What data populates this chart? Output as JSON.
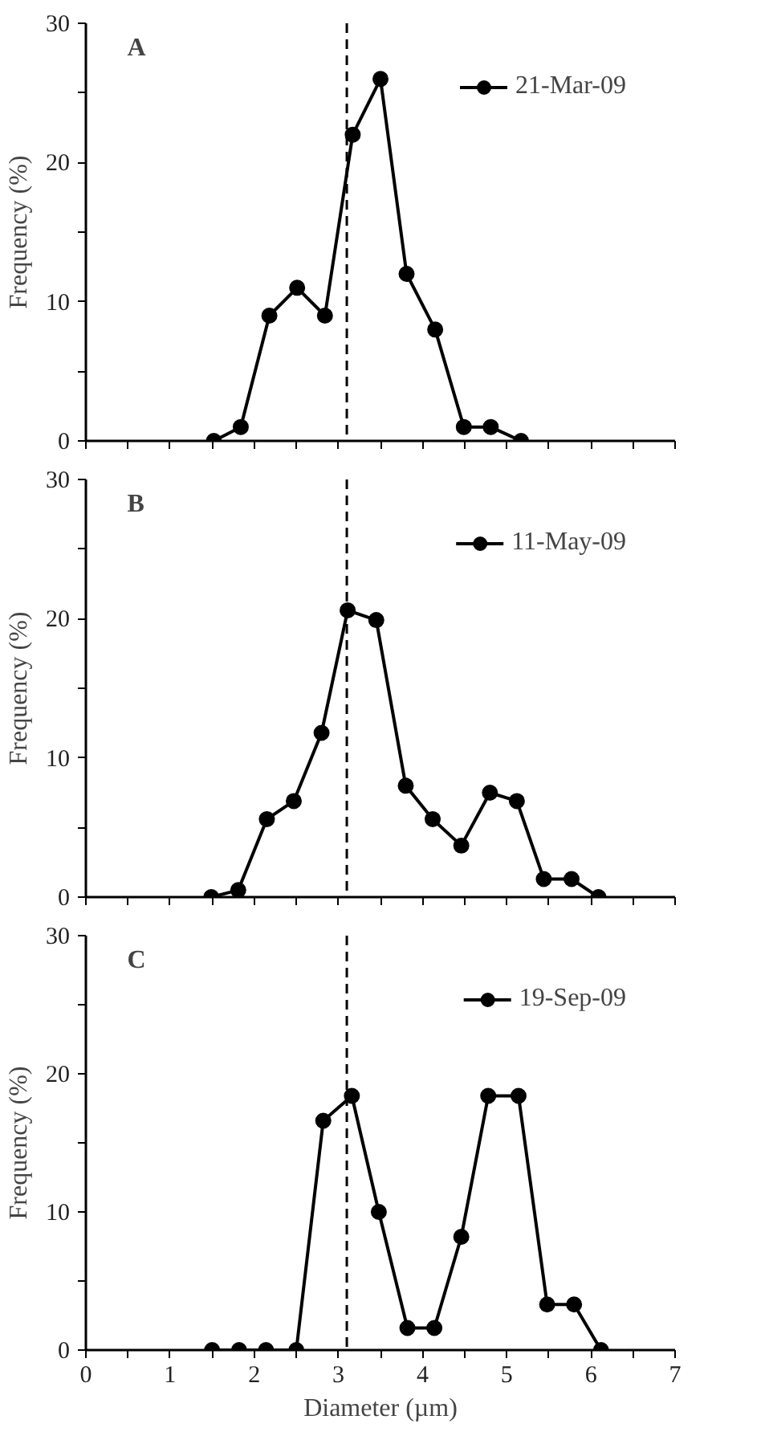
{
  "chart_data": [
    {
      "type": "line",
      "xlim": [
        0,
        7
      ],
      "ylim": [
        0,
        30
      ],
      "tick_labels": "y",
      "ylabel": "Frequency (%)",
      "marker": "circle",
      "line_style": "solid",
      "legend": "top right",
      "grid": false,
      "xticks": [
        0,
        {
          "value": 0.5,
          "label": null
        },
        1,
        {
          "value": 1.5,
          "label": null
        },
        2,
        {
          "value": 2.5,
          "label": null
        },
        3,
        {
          "value": 3.5,
          "label": null
        },
        4,
        {
          "value": 4.5,
          "label": null
        },
        5,
        {
          "value": 5.5,
          "label": null
        },
        6,
        {
          "value": 6.5,
          "label": null
        },
        7
      ],
      "yticks": [
        0,
        {
          "value": 5,
          "label": null
        },
        10,
        {
          "value": 15,
          "label": null
        },
        20,
        {
          "value": 25,
          "label": null
        },
        30
      ],
      "annotations": [
        {
          "text": "A"
        }
      ],
      "ref_lines": [
        {
          "axis": "x",
          "value": 3.1,
          "label": null,
          "color": "#000000",
          "line_style": "dashed"
        }
      ],
      "series": [
        {
          "name": "21-Mar-09",
          "color": "#000000",
          "x": [
            1.52,
            1.84,
            2.18,
            2.51,
            2.84,
            3.17,
            3.5,
            3.81,
            4.15,
            4.49,
            4.81,
            5.17
          ],
          "values": [
            0,
            1,
            9,
            11,
            9,
            22,
            26,
            12,
            8,
            1,
            1,
            0
          ]
        }
      ]
    },
    {
      "type": "line",
      "xlim": [
        0,
        7
      ],
      "ylim": [
        0,
        30
      ],
      "tick_labels": "y",
      "ylabel": "Frequency (%)",
      "marker": "circle",
      "line_style": "solid",
      "legend": "top right",
      "grid": false,
      "xticks": [
        0,
        {
          "value": 0.5,
          "label": null
        },
        1,
        {
          "value": 1.5,
          "label": null
        },
        2,
        {
          "value": 2.5,
          "label": null
        },
        3,
        {
          "value": 3.5,
          "label": null
        },
        4,
        {
          "value": 4.5,
          "label": null
        },
        5,
        {
          "value": 5.5,
          "label": null
        },
        6,
        {
          "value": 6.5,
          "label": null
        },
        7
      ],
      "yticks": [
        0,
        {
          "value": 5,
          "label": null
        },
        10,
        {
          "value": 15,
          "label": null
        },
        20,
        {
          "value": 25,
          "label": null
        },
        30
      ],
      "annotations": [
        {
          "text": "B"
        }
      ],
      "ref_lines": [
        {
          "axis": "x",
          "value": 3.1,
          "label": null,
          "color": "#000000",
          "line_style": "dashed"
        }
      ],
      "series": [
        {
          "name": "11-May-09",
          "color": "#000000",
          "x": [
            1.49,
            1.81,
            2.15,
            2.47,
            2.8,
            3.11,
            3.45,
            3.8,
            4.12,
            4.46,
            4.8,
            5.12,
            5.44,
            5.77,
            6.09
          ],
          "values": [
            0,
            0.5,
            5.6,
            6.9,
            11.8,
            20.6,
            19.9,
            8,
            5.6,
            3.7,
            7.5,
            6.9,
            1.3,
            1.3,
            0
          ]
        }
      ]
    },
    {
      "type": "line",
      "xlim": [
        0,
        7
      ],
      "ylim": [
        0,
        30
      ],
      "xlabel": "Diameter (µm)",
      "ylabel": "Frequency (%)",
      "marker": "circle",
      "line_style": "solid",
      "legend": "top right",
      "grid": false,
      "xticks": [
        0,
        {
          "value": 0.5,
          "label": null
        },
        1,
        {
          "value": 1.5,
          "label": null
        },
        2,
        {
          "value": 2.5,
          "label": null
        },
        3,
        {
          "value": 3.5,
          "label": null
        },
        4,
        {
          "value": 4.5,
          "label": null
        },
        5,
        {
          "value": 5.5,
          "label": null
        },
        6,
        {
          "value": 6.5,
          "label": null
        },
        7
      ],
      "yticks": [
        0,
        {
          "value": 5,
          "label": null
        },
        10,
        {
          "value": 15,
          "label": null
        },
        20,
        {
          "value": 25,
          "label": null
        },
        30
      ],
      "annotations": [
        {
          "text": "C"
        }
      ],
      "ref_lines": [
        {
          "axis": "x",
          "value": 3.1,
          "label": null,
          "color": "#000000",
          "line_style": "dashed"
        }
      ],
      "series": [
        {
          "name": "19-Sep-09",
          "color": "#000000",
          "x": [
            1.5,
            1.82,
            2.14,
            2.5,
            2.82,
            3.16,
            3.48,
            3.82,
            4.14,
            4.46,
            4.78,
            5.14,
            5.48,
            5.8,
            6.12
          ],
          "values": [
            0,
            0,
            0,
            0,
            16.6,
            18.4,
            10,
            1.6,
            1.6,
            8.2,
            18.4,
            18.4,
            3.3,
            3.3,
            0
          ]
        }
      ]
    }
  ]
}
